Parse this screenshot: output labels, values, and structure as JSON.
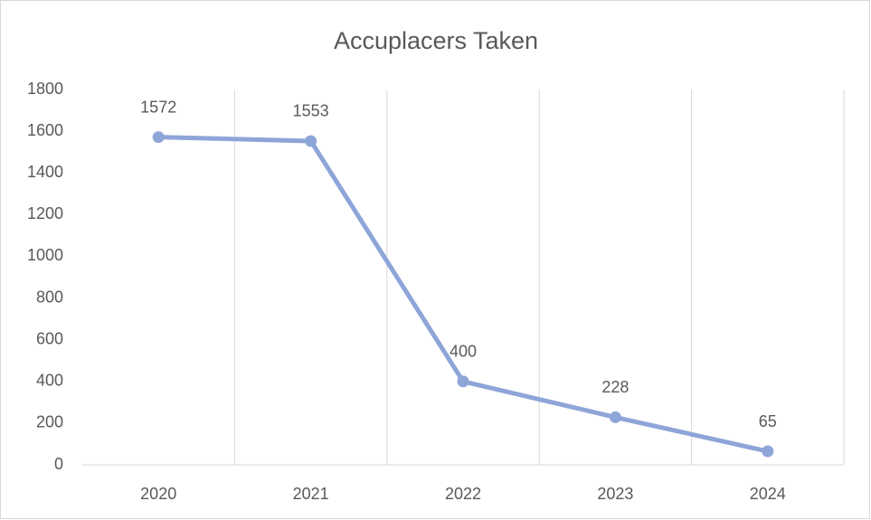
{
  "chart_data": {
    "type": "line",
    "title": "Accuplacers Taken",
    "categories": [
      "2020",
      "2021",
      "2022",
      "2023",
      "2024"
    ],
    "values": [
      1572,
      1553,
      400,
      228,
      65
    ],
    "color": "#8ea5d8",
    "ylim": [
      0,
      1800
    ],
    "yticks": [
      0,
      200,
      400,
      600,
      800,
      1000,
      1200,
      1400,
      1600,
      1800
    ],
    "grid": "x",
    "data_labels": true
  }
}
